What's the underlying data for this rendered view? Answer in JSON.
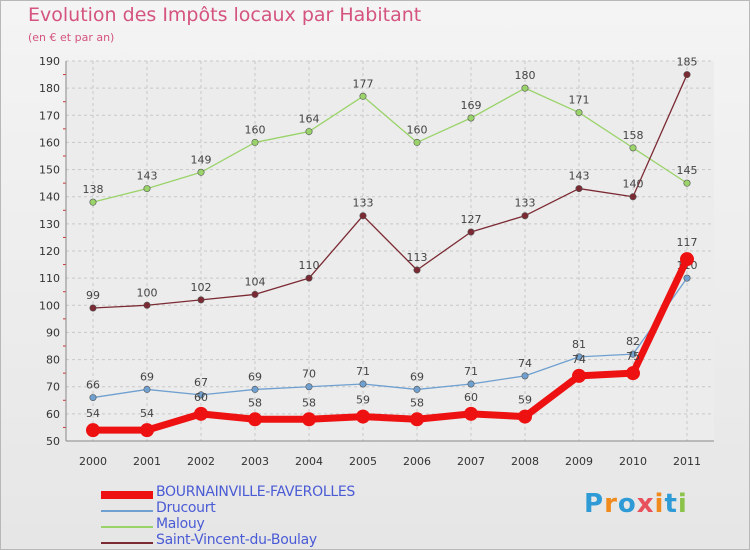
{
  "title": "Evolution des Impôts locaux par Habitant",
  "subtitle": "(en € et par an)",
  "logo": {
    "letters": [
      "P",
      "r",
      "o",
      "x",
      "i",
      "t",
      "i"
    ],
    "colors": [
      "#2f9bd6",
      "#f08a1c",
      "#2f9bd6",
      "#e8505b",
      "#f08a1c",
      "#2f9bd6",
      "#8bc34a"
    ]
  },
  "chart_data": {
    "type": "line",
    "x": [
      "2000",
      "2001",
      "2002",
      "2003",
      "2004",
      "2005",
      "2006",
      "2007",
      "2008",
      "2009",
      "2010",
      "2011"
    ],
    "ylim": [
      50,
      190
    ],
    "yticks": [
      50,
      60,
      70,
      80,
      90,
      100,
      110,
      120,
      130,
      140,
      150,
      160,
      170,
      180,
      190
    ],
    "grid": true,
    "legend_position": "bottom-left",
    "series": [
      {
        "name": "Malouy",
        "color": "#9ad36a",
        "values": [
          138,
          143,
          149,
          160,
          164,
          177,
          160,
          169,
          180,
          171,
          158,
          145
        ]
      },
      {
        "name": "Saint-Vincent-du-Boulay",
        "color": "#7b2a33",
        "values": [
          99,
          100,
          102,
          104,
          110,
          133,
          113,
          127,
          133,
          143,
          140,
          185
        ]
      },
      {
        "name": "Drucourt",
        "color": "#6fa0d0",
        "values": [
          66,
          69,
          67,
          69,
          70,
          71,
          69,
          71,
          74,
          81,
          82,
          110
        ]
      },
      {
        "name": "BOURNAINVILLE-FAVEROLLES",
        "color": "#ee1111",
        "values": [
          54,
          54,
          60,
          58,
          58,
          59,
          58,
          60,
          59,
          74,
          75,
          117
        ]
      }
    ]
  },
  "legend": [
    {
      "name": "BOURNAINVILLE-FAVEROLLES",
      "color": "#ee1111",
      "thick": true
    },
    {
      "name": "Drucourt",
      "color": "#6fa0d0",
      "thick": false
    },
    {
      "name": "Malouy",
      "color": "#9ad36a",
      "thick": false
    },
    {
      "name": "Saint-Vincent-du-Boulay",
      "color": "#7b2a33",
      "thick": false
    }
  ]
}
